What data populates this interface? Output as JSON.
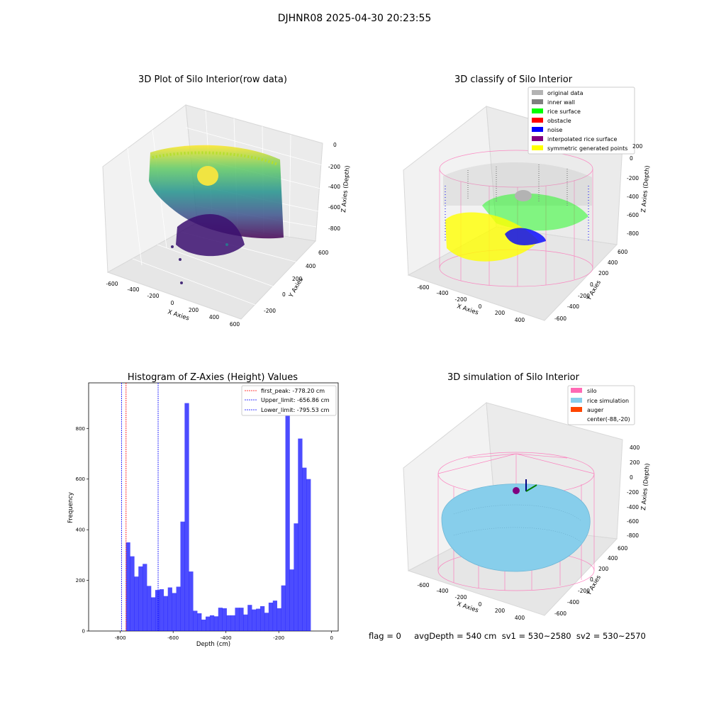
{
  "figure_title": "DJHNR08 2025-04-30 20:23:55",
  "status_line": "flag = 0     avgDepth = 540 cm  sv1 = 530~2580  sv2 = 530~2570",
  "panels": {
    "raw": {
      "title": "3D Plot of Silo Interior(row data)",
      "xlabel": "X Axies",
      "ylabel": "Y Axies",
      "zlabel": "Z Axies (Depth)",
      "xticks": [
        "-600",
        "-400",
        "-200",
        "0",
        "200",
        "400",
        "600"
      ],
      "yticks": [
        "-200",
        "0",
        "200",
        "400",
        "600"
      ],
      "zticks": [
        "0",
        "-200",
        "-400",
        "-600",
        "-800"
      ]
    },
    "classify": {
      "title": "3D classify of Silo Interior",
      "xlabel": "X Axies",
      "ylabel": "Y Axies",
      "zlabel": "Z Axies (Depth)",
      "xticks": [
        "-600",
        "-400",
        "-200",
        "0",
        "200",
        "400"
      ],
      "yticks": [
        "-600",
        "-400",
        "-200",
        "0",
        "200",
        "400",
        "600"
      ],
      "zticks": [
        "200",
        "0",
        "-200",
        "-400",
        "-600",
        "-800"
      ],
      "legend": [
        {
          "label": "original data",
          "color": "#b3b3b3"
        },
        {
          "label": "inner wall",
          "color": "#808080"
        },
        {
          "label": "rice surface",
          "color": "#00ff00"
        },
        {
          "label": "obstacle",
          "color": "#ff0000"
        },
        {
          "label": "noise",
          "color": "#0000ff"
        },
        {
          "label": "interpolated rice surface",
          "color": "#800080"
        },
        {
          "label": "symmetric generated points",
          "color": "#ffff00"
        }
      ]
    },
    "simulation": {
      "title": "3D simulation of Silo Interior",
      "xlabel": "X Axies",
      "ylabel": "Y Axies",
      "zlabel": "Z Axies (Depth)",
      "xticks": [
        "-600",
        "-400",
        "-200",
        "0",
        "200",
        "400"
      ],
      "yticks": [
        "-600",
        "-400",
        "-200",
        "0",
        "200",
        "400",
        "600"
      ],
      "zticks": [
        "400",
        "200",
        "0",
        "-200",
        "-400",
        "-600",
        "-800"
      ],
      "legend": [
        {
          "label": "silo",
          "color": "#ff69b4"
        },
        {
          "label": "rice simulation",
          "color": "#87ceeb"
        },
        {
          "label": "auger",
          "color": "#ff4500"
        },
        {
          "label": "center(-88,-20)",
          "color": ""
        }
      ]
    }
  },
  "chart_data": {
    "type": "bar",
    "title": "Histogram of Z-Axies (Height) Values",
    "xlabel": "Depth (cm)",
    "ylabel": "Frequency",
    "xlim": [
      -920,
      25
    ],
    "ylim": [
      0,
      980
    ],
    "xticks": [
      -800,
      -600,
      -400,
      -200,
      0
    ],
    "yticks": [
      0,
      200,
      400,
      600,
      800
    ],
    "bin_start": -795,
    "bin_width": 15.9,
    "values": [
      0,
      350,
      295,
      215,
      255,
      265,
      178,
      133,
      162,
      165,
      138,
      172,
      150,
      175,
      432,
      900,
      235,
      80,
      70,
      45,
      57,
      62,
      58,
      92,
      90,
      62,
      62,
      92,
      92,
      65,
      103,
      85,
      88,
      98,
      72,
      112,
      120,
      90,
      180,
      930,
      243,
      425,
      760,
      645,
      600
    ],
    "bar_color": "#0000ff",
    "vlines": [
      {
        "label": "first_peak: -778.20 cm",
        "x": -778.2,
        "color": "#ff0000"
      },
      {
        "label": "Upper_limit: -656.86 cm",
        "x": -656.86,
        "color": "#0000ff"
      },
      {
        "label": "Lower_limit: -795.53 cm",
        "x": -795.53,
        "color": "#0000ff"
      }
    ],
    "legend_position": "top-right"
  }
}
